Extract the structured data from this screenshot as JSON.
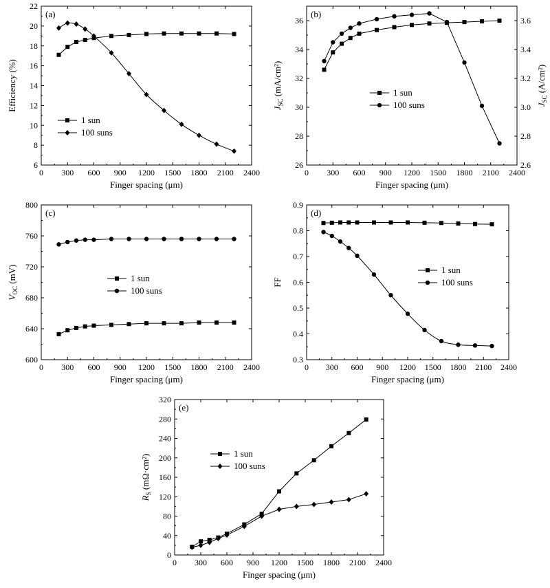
{
  "chart_data": [
    {
      "id": "a",
      "type": "line",
      "panel_label": "(a)",
      "xlabel": "Finger spacing (μm)",
      "ylabel": "Efficiency (%)",
      "xlim": [
        0,
        2400
      ],
      "ylim": [
        6,
        22
      ],
      "xticks": [
        0,
        300,
        600,
        900,
        1200,
        1500,
        1800,
        2100,
        2400
      ],
      "yticks": [
        6,
        8,
        10,
        12,
        14,
        16,
        18,
        20,
        22
      ],
      "legend_position": "lower-left",
      "series": [
        {
          "name": "1 sun",
          "marker": "square",
          "x": [
            200,
            300,
            400,
            500,
            600,
            800,
            1000,
            1200,
            1400,
            1600,
            1800,
            2000,
            2200
          ],
          "y": [
            17.1,
            17.9,
            18.4,
            18.6,
            18.8,
            19.0,
            19.1,
            19.2,
            19.25,
            19.25,
            19.25,
            19.25,
            19.2
          ]
        },
        {
          "name": "100 suns",
          "marker": "diamond",
          "x": [
            200,
            300,
            400,
            500,
            600,
            800,
            1000,
            1200,
            1400,
            1600,
            1800,
            2000,
            2200
          ],
          "y": [
            19.8,
            20.3,
            20.2,
            19.7,
            19.0,
            17.3,
            15.2,
            13.1,
            11.5,
            10.1,
            9.0,
            8.1,
            7.4
          ]
        }
      ]
    },
    {
      "id": "b",
      "type": "line",
      "panel_label": "(b)",
      "xlabel": "Finger spacing (μm)",
      "ylabel": "J_SC (mA/cm²)",
      "ylabel_main": "J",
      "ylabel_sub": "SC",
      "ylabel_unit": " (mA/cm²)",
      "y2label_main": "J",
      "y2label_sub": "SC",
      "y2label_unit": " (A/cm²)",
      "xlim": [
        0,
        2400
      ],
      "ylim": [
        26,
        37
      ],
      "y2lim": [
        2.6,
        3.7
      ],
      "xticks": [
        0,
        300,
        600,
        900,
        1200,
        1500,
        1800,
        2100,
        2400
      ],
      "yticks": [
        26,
        28,
        30,
        32,
        34,
        36
      ],
      "y2ticks": [
        "2.6",
        "2.8",
        "3.0",
        "3.2",
        "3.4",
        "3.6"
      ],
      "legend_position": "center",
      "series": [
        {
          "name": "1 sun",
          "marker": "square",
          "axis": "left",
          "x": [
            200,
            300,
            400,
            500,
            600,
            800,
            1000,
            1200,
            1400,
            1600,
            1800,
            2000,
            2200
          ],
          "y": [
            32.6,
            33.8,
            34.4,
            34.8,
            35.1,
            35.35,
            35.55,
            35.7,
            35.8,
            35.85,
            35.9,
            35.95,
            36.0
          ]
        },
        {
          "name": "100 suns",
          "marker": "circle",
          "axis": "right",
          "x": [
            200,
            300,
            400,
            500,
            600,
            800,
            1000,
            1200,
            1400,
            1600,
            1800,
            2000,
            2200
          ],
          "y": [
            3.32,
            3.45,
            3.51,
            3.55,
            3.58,
            3.61,
            3.63,
            3.64,
            3.65,
            3.59,
            3.31,
            3.01,
            2.75
          ]
        }
      ]
    },
    {
      "id": "c",
      "type": "line",
      "panel_label": "(c)",
      "xlabel": "Finger spacing (μm)",
      "ylabel": "V_OC (mV)",
      "ylabel_main": "V",
      "ylabel_sub": "OC",
      "ylabel_unit": " (mV)",
      "xlim": [
        0,
        2400
      ],
      "ylim": [
        600,
        800
      ],
      "xticks": [
        0,
        300,
        600,
        900,
        1200,
        1500,
        1800,
        2100,
        2400
      ],
      "yticks": [
        600,
        640,
        680,
        720,
        760,
        800
      ],
      "legend_position": "center",
      "series": [
        {
          "name": "1 sun",
          "marker": "square",
          "x": [
            200,
            300,
            400,
            500,
            600,
            800,
            1000,
            1200,
            1400,
            1600,
            1800,
            2000,
            2200
          ],
          "y": [
            633,
            638,
            641,
            643,
            644,
            645,
            646,
            647,
            647,
            647,
            648,
            648,
            648
          ]
        },
        {
          "name": "100 suns",
          "marker": "circle",
          "x": [
            200,
            300,
            400,
            500,
            600,
            800,
            1000,
            1200,
            1400,
            1600,
            1800,
            2000,
            2200
          ],
          "y": [
            749,
            752,
            754,
            755,
            755,
            756,
            756,
            756,
            756,
            756,
            756,
            756,
            756
          ]
        }
      ]
    },
    {
      "id": "d",
      "type": "line",
      "panel_label": "(d)",
      "xlabel": "Finger spacing (μm)",
      "ylabel": "FF",
      "xlim": [
        0,
        2400
      ],
      "ylim": [
        0.3,
        0.9
      ],
      "xticks": [
        0,
        300,
        600,
        900,
        1200,
        1500,
        1800,
        2100,
        2400
      ],
      "yticks": [
        "0.3",
        "0.4",
        "0.5",
        "0.6",
        "0.7",
        "0.8",
        "0.9"
      ],
      "legend_position": "right",
      "series": [
        {
          "name": "1 sun",
          "marker": "square",
          "x": [
            200,
            300,
            400,
            500,
            600,
            800,
            1000,
            1200,
            1400,
            1600,
            1800,
            2000,
            2200
          ],
          "y": [
            0.83,
            0.831,
            0.832,
            0.832,
            0.832,
            0.832,
            0.832,
            0.832,
            0.831,
            0.83,
            0.828,
            0.826,
            0.825
          ]
        },
        {
          "name": "100 suns",
          "marker": "circle",
          "x": [
            200,
            300,
            400,
            500,
            600,
            800,
            1000,
            1200,
            1400,
            1600,
            1800,
            2000,
            2200
          ],
          "y": [
            0.795,
            0.78,
            0.758,
            0.733,
            0.703,
            0.63,
            0.55,
            0.478,
            0.415,
            0.372,
            0.358,
            0.355,
            0.353
          ]
        }
      ]
    },
    {
      "id": "e",
      "type": "line",
      "panel_label": "(e)",
      "xlabel": "Finger spacing (μm)",
      "ylabel": "R_S (mΩ·cm²)",
      "ylabel_main": "R",
      "ylabel_sub": "S",
      "ylabel_unit": " (mΩ·cm²)",
      "xlim": [
        0,
        2400
      ],
      "ylim": [
        0,
        320
      ],
      "xticks": [
        0,
        300,
        600,
        900,
        1200,
        1500,
        1800,
        2100,
        2400
      ],
      "yticks": [
        0,
        40,
        80,
        120,
        160,
        200,
        240,
        280,
        320
      ],
      "legend_position": "upper-left",
      "series": [
        {
          "name": "1 sun",
          "marker": "square",
          "x": [
            200,
            300,
            400,
            500,
            600,
            800,
            1000,
            1200,
            1400,
            1600,
            1800,
            2000,
            2200
          ],
          "y": [
            17,
            28,
            31,
            36,
            44,
            63,
            85,
            131,
            168,
            195,
            224,
            251,
            279
          ]
        },
        {
          "name": "100 suns",
          "marker": "diamond",
          "x": [
            200,
            300,
            400,
            500,
            600,
            800,
            1000,
            1200,
            1400,
            1600,
            1800,
            2000,
            2200
          ],
          "y": [
            16,
            20,
            26,
            34,
            41,
            59,
            80,
            94,
            100,
            104,
            109,
            114,
            126
          ]
        }
      ]
    }
  ]
}
